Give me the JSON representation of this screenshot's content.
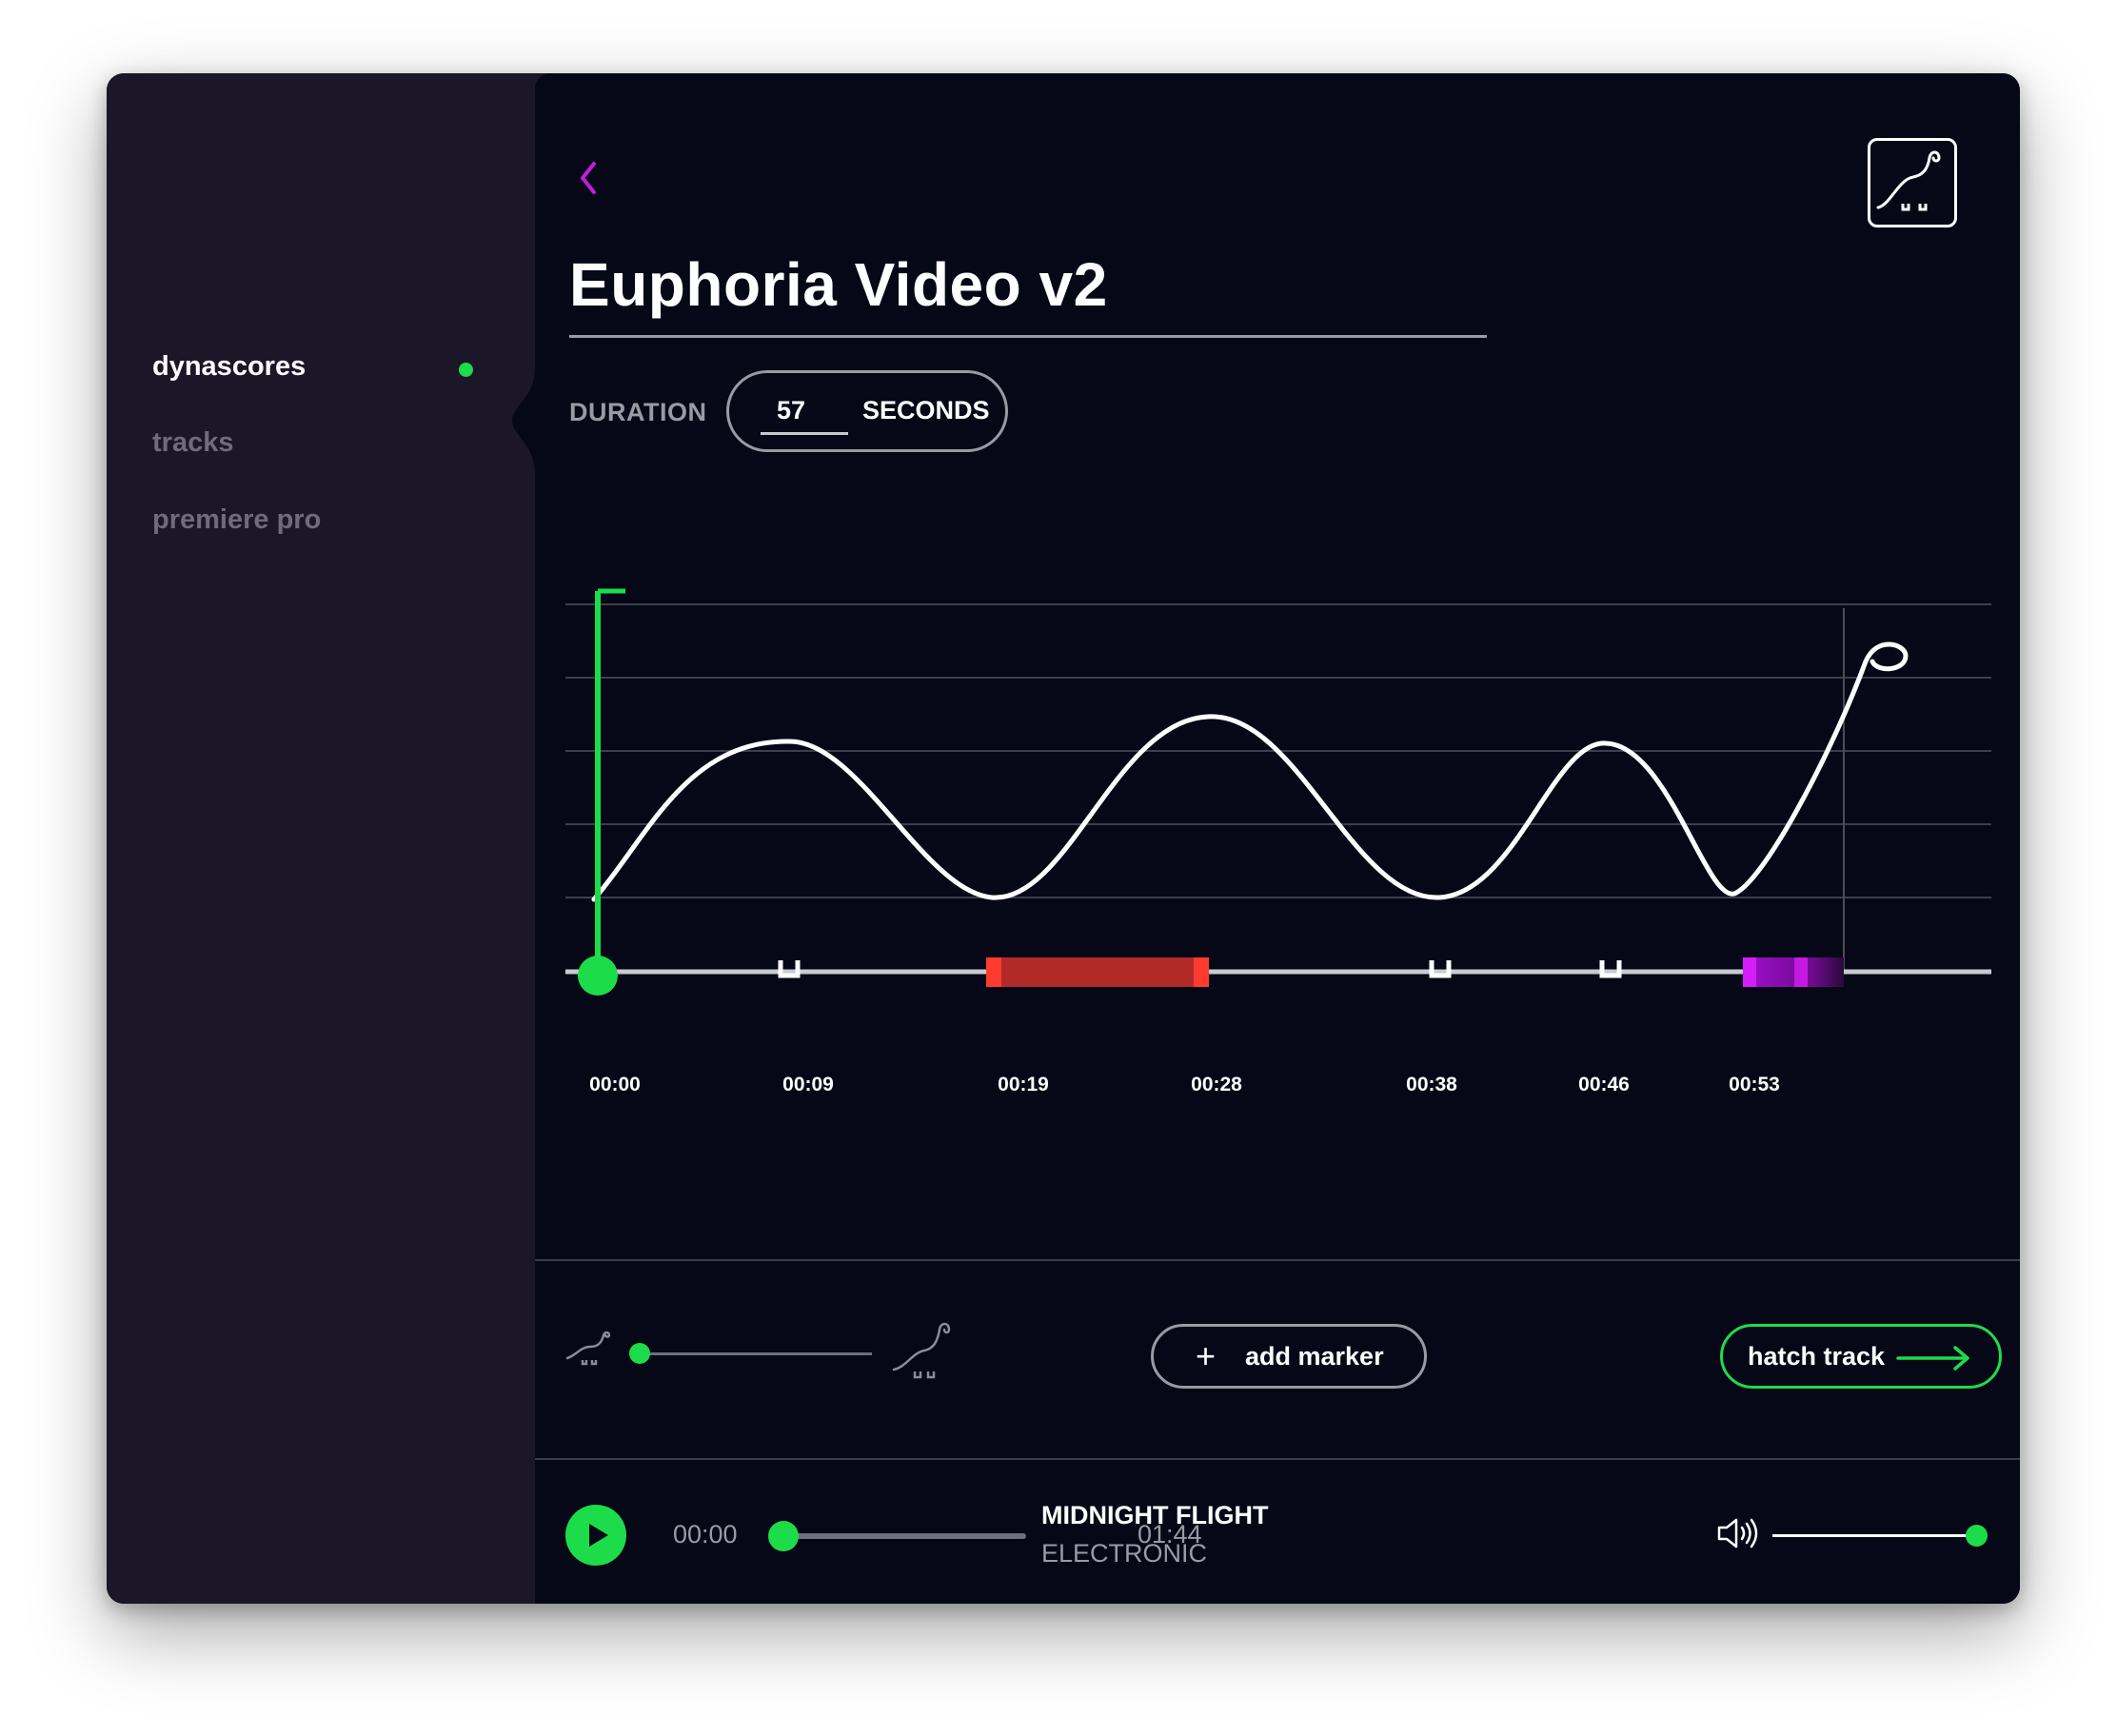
{
  "sidebar": {
    "items": [
      {
        "label": "dynascores",
        "active": true
      },
      {
        "label": "tracks",
        "active": false
      },
      {
        "label": "premiere pro",
        "active": false
      }
    ],
    "active_indicator_color": "#1ddc4a"
  },
  "header": {
    "back_icon": "chevron-left-icon",
    "logo_icon": "dino-logo-icon",
    "title": "Euphoria Video v2"
  },
  "duration": {
    "label": "DURATION",
    "value": "57",
    "unit": "SECONDS"
  },
  "timeline": {
    "markers": [
      {
        "time": "00:00",
        "type": "playhead-start"
      },
      {
        "time": "00:09",
        "type": "marker"
      },
      {
        "time": "00:19",
        "type": "region-start"
      },
      {
        "time": "00:28",
        "type": "region-end"
      },
      {
        "time": "00:38",
        "type": "marker"
      },
      {
        "time": "00:46",
        "type": "marker"
      },
      {
        "time": "00:53",
        "type": "region-purple"
      }
    ],
    "colors": {
      "playhead": "#1ddc4a",
      "region_red": "#b22a28",
      "region_red_edge": "#ff3b30",
      "region_purple": "#8b10b5",
      "curve": "#ffffff"
    }
  },
  "controls": {
    "intensity_low_icon": "dino-small-icon",
    "intensity_high_icon": "dino-large-icon",
    "intensity_level": 0,
    "add_marker_label": "add marker",
    "hatch_track_label": "hatch track"
  },
  "player": {
    "current_time": "00:00",
    "total_time": "01:44",
    "progress": 0,
    "song_title": "MIDNIGHT FLIGHT",
    "genre": "ELECTRONIC",
    "volume": 1.0,
    "play_icon": "play-icon",
    "volume_icon": "speaker-icon"
  }
}
